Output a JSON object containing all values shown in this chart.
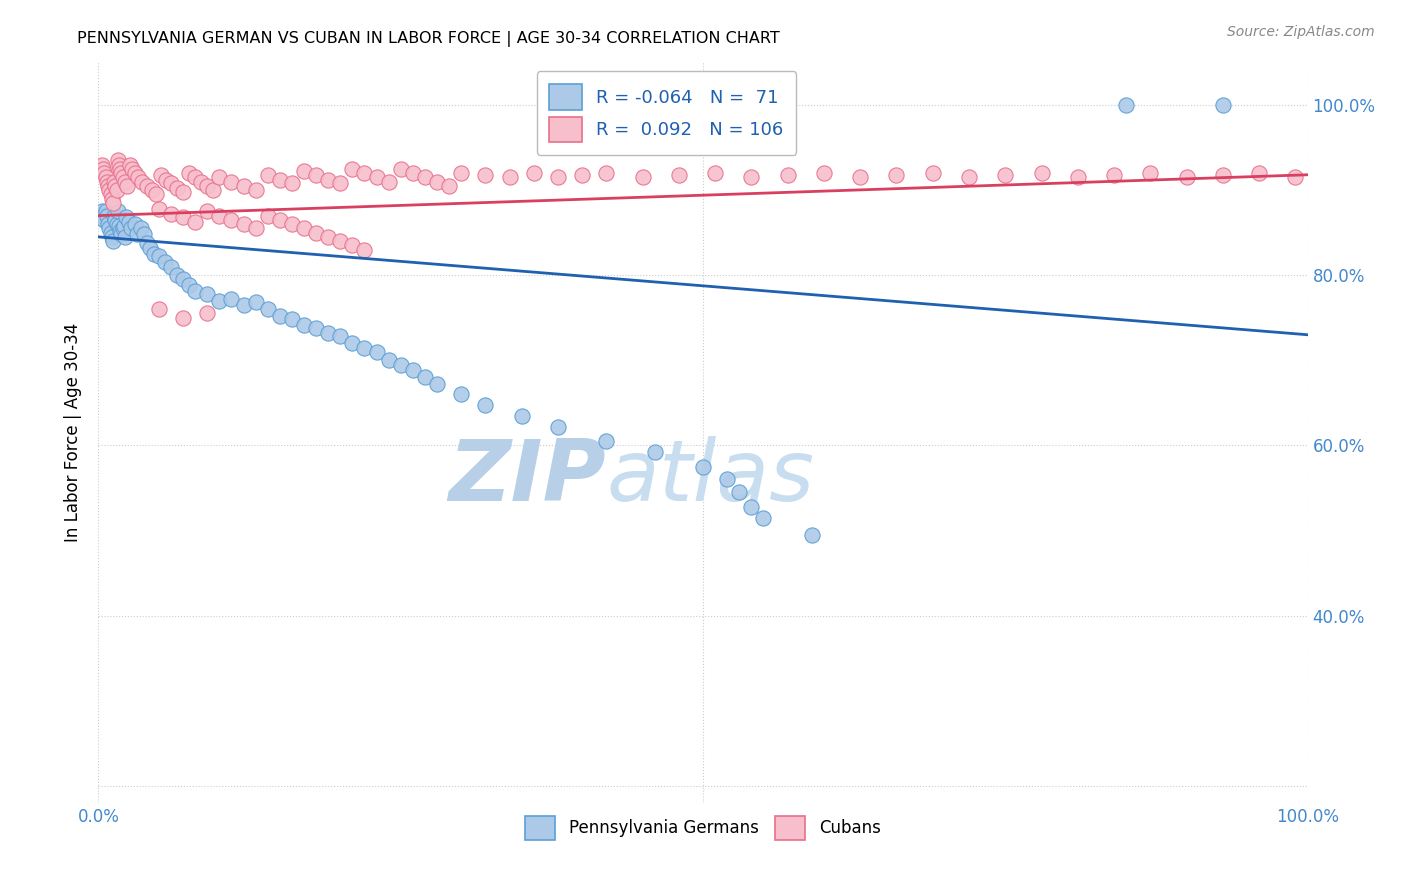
{
  "title": "PENNSYLVANIA GERMAN VS CUBAN IN LABOR FORCE | AGE 30-34 CORRELATION CHART",
  "source": "Source: ZipAtlas.com",
  "ylabel": "In Labor Force | Age 30-34",
  "legend_blue_label": "Pennsylvania Germans",
  "legend_pink_label": "Cubans",
  "r_blue": "-0.064",
  "n_blue": "71",
  "r_pink": "0.092",
  "n_pink": "106",
  "blue_color": "#adc9e8",
  "blue_edge_color": "#5a9fd4",
  "pink_color": "#f7bfcc",
  "pink_edge_color": "#e8708a",
  "blue_line_color": "#2060b0",
  "pink_line_color": "#d94060",
  "right_axis_color": "#4488cc",
  "watermark_zip_color": "#b8cfe8",
  "watermark_atlas_color": "#c8ddf0",
  "bg_color": "#ffffff",
  "grid_color": "#cccccc",
  "blue_trend_x0": 0.0,
  "blue_trend_y0": 0.845,
  "blue_trend_x1": 1.0,
  "blue_trend_y1": 0.73,
  "pink_trend_x0": 0.0,
  "pink_trend_y0": 0.87,
  "pink_trend_x1": 1.0,
  "pink_trend_y1": 0.918,
  "xlim": [
    0.0,
    1.0
  ],
  "ylim": [
    0.18,
    1.05
  ],
  "yticks": [
    0.2,
    0.4,
    0.6,
    0.8,
    1.0
  ],
  "ytick_labels_right": [
    "",
    "40.0%",
    "60.0%",
    "80.0%",
    "100.0%"
  ],
  "xtick_positions": [
    0.0,
    0.5,
    1.0
  ],
  "xtick_labels": [
    "0.0%",
    "",
    "100.0%"
  ],
  "blue_points_x": [
    0.003,
    0.004,
    0.005,
    0.006,
    0.007,
    0.008,
    0.009,
    0.01,
    0.011,
    0.012,
    0.013,
    0.014,
    0.015,
    0.016,
    0.017,
    0.018,
    0.019,
    0.02,
    0.021,
    0.022,
    0.023,
    0.025,
    0.027,
    0.03,
    0.032,
    0.035,
    0.038,
    0.04,
    0.043,
    0.046,
    0.05,
    0.055,
    0.06,
    0.065,
    0.07,
    0.075,
    0.08,
    0.09,
    0.1,
    0.11,
    0.12,
    0.13,
    0.14,
    0.15,
    0.16,
    0.17,
    0.18,
    0.19,
    0.2,
    0.21,
    0.22,
    0.23,
    0.24,
    0.25,
    0.26,
    0.27,
    0.28,
    0.3,
    0.32,
    0.35,
    0.38,
    0.42,
    0.46,
    0.5,
    0.52,
    0.53,
    0.54,
    0.55,
    0.59,
    0.85,
    0.93
  ],
  "blue_points_y": [
    0.875,
    0.87,
    0.865,
    0.875,
    0.87,
    0.86,
    0.855,
    0.85,
    0.845,
    0.84,
    0.87,
    0.865,
    0.86,
    0.875,
    0.858,
    0.852,
    0.848,
    0.855,
    0.858,
    0.845,
    0.868,
    0.862,
    0.855,
    0.86,
    0.848,
    0.855,
    0.848,
    0.838,
    0.832,
    0.825,
    0.822,
    0.815,
    0.81,
    0.8,
    0.795,
    0.788,
    0.782,
    0.778,
    0.77,
    0.772,
    0.765,
    0.768,
    0.76,
    0.752,
    0.748,
    0.742,
    0.738,
    0.732,
    0.728,
    0.72,
    0.715,
    0.71,
    0.7,
    0.695,
    0.688,
    0.68,
    0.672,
    0.66,
    0.648,
    0.635,
    0.622,
    0.605,
    0.592,
    0.575,
    0.56,
    0.545,
    0.528,
    0.515,
    0.495,
    1.0,
    1.0
  ],
  "pink_points_x": [
    0.003,
    0.004,
    0.005,
    0.006,
    0.007,
    0.008,
    0.009,
    0.01,
    0.011,
    0.012,
    0.013,
    0.014,
    0.015,
    0.016,
    0.017,
    0.018,
    0.019,
    0.02,
    0.022,
    0.024,
    0.026,
    0.028,
    0.03,
    0.033,
    0.036,
    0.04,
    0.044,
    0.048,
    0.052,
    0.056,
    0.06,
    0.065,
    0.07,
    0.075,
    0.08,
    0.085,
    0.09,
    0.095,
    0.1,
    0.11,
    0.12,
    0.13,
    0.14,
    0.15,
    0.16,
    0.17,
    0.18,
    0.19,
    0.2,
    0.21,
    0.22,
    0.23,
    0.24,
    0.25,
    0.26,
    0.27,
    0.28,
    0.29,
    0.3,
    0.32,
    0.34,
    0.36,
    0.38,
    0.4,
    0.42,
    0.45,
    0.48,
    0.51,
    0.54,
    0.57,
    0.6,
    0.63,
    0.66,
    0.69,
    0.72,
    0.75,
    0.78,
    0.81,
    0.84,
    0.87,
    0.9,
    0.93,
    0.96,
    0.99,
    0.05,
    0.06,
    0.07,
    0.08,
    0.09,
    0.1,
    0.11,
    0.12,
    0.13,
    0.14,
    0.15,
    0.16,
    0.17,
    0.18,
    0.19,
    0.2,
    0.21,
    0.22,
    0.05,
    0.07,
    0.09
  ],
  "pink_points_y": [
    0.93,
    0.925,
    0.92,
    0.915,
    0.91,
    0.905,
    0.9,
    0.895,
    0.89,
    0.885,
    0.91,
    0.905,
    0.9,
    0.935,
    0.93,
    0.925,
    0.92,
    0.915,
    0.91,
    0.905,
    0.93,
    0.925,
    0.92,
    0.915,
    0.91,
    0.905,
    0.9,
    0.895,
    0.918,
    0.912,
    0.908,
    0.903,
    0.898,
    0.92,
    0.915,
    0.91,
    0.905,
    0.9,
    0.915,
    0.91,
    0.905,
    0.9,
    0.918,
    0.912,
    0.908,
    0.922,
    0.918,
    0.912,
    0.908,
    0.925,
    0.92,
    0.915,
    0.91,
    0.925,
    0.92,
    0.915,
    0.91,
    0.905,
    0.92,
    0.918,
    0.915,
    0.92,
    0.915,
    0.918,
    0.92,
    0.915,
    0.918,
    0.92,
    0.915,
    0.918,
    0.92,
    0.915,
    0.918,
    0.92,
    0.915,
    0.918,
    0.92,
    0.915,
    0.918,
    0.92,
    0.915,
    0.918,
    0.92,
    0.915,
    0.878,
    0.872,
    0.868,
    0.862,
    0.875,
    0.87,
    0.865,
    0.86,
    0.855,
    0.87,
    0.865,
    0.86,
    0.855,
    0.85,
    0.845,
    0.84,
    0.835,
    0.83,
    0.76,
    0.75,
    0.755
  ]
}
